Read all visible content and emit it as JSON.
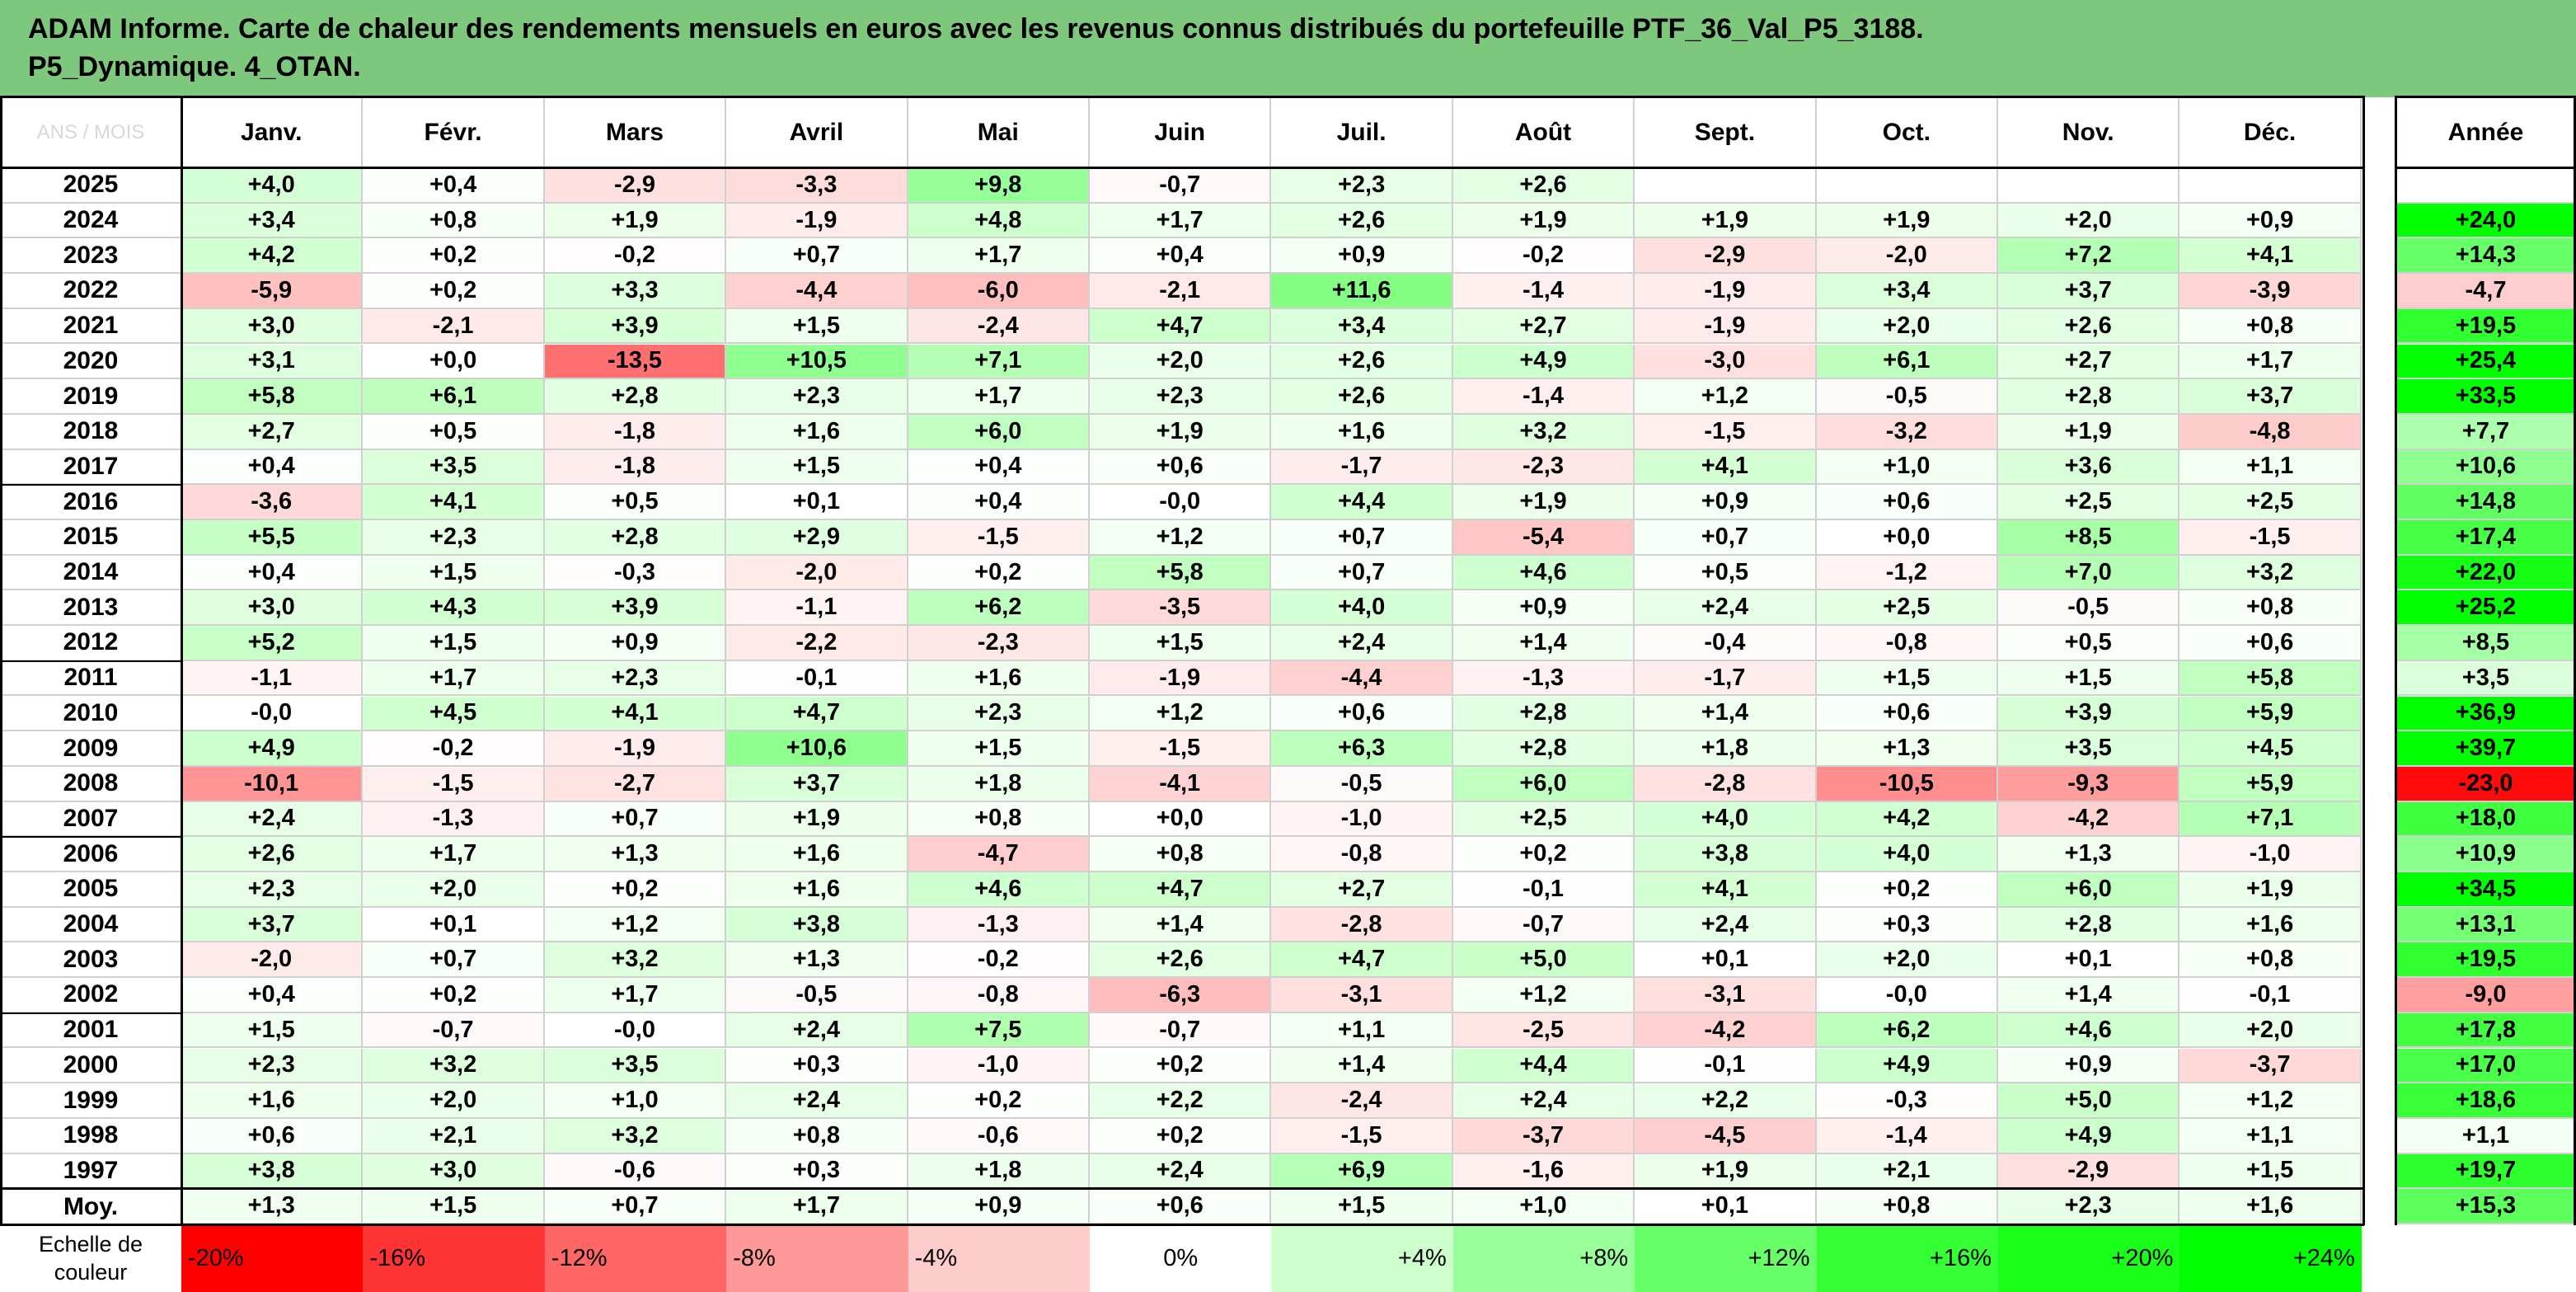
{
  "title": "ADAM Informe. Carte de chaleur des rendements mensuels en euros avec les revenus connus distribués du portefeuille PTF_36_Val_P5_3188.\nP5_Dynamique. 4_OTAN.",
  "corner_label": "ANS / MOIS",
  "months": [
    "Janv.",
    "Févr.",
    "Mars",
    "Avril",
    "Mai",
    "Juin",
    "Juil.",
    "Août",
    "Sept.",
    "Oct.",
    "Nov.",
    "Déc."
  ],
  "year_header": "Année",
  "rows": [
    {
      "year": "2025",
      "m": [
        "+4,0",
        "+0,4",
        "-2,9",
        "-3,3",
        "+9,8",
        "-0,7",
        "+2,3",
        "+2,6",
        "",
        "",
        "",
        ""
      ],
      "annual": ""
    },
    {
      "year": "2024",
      "m": [
        "+3,4",
        "+0,8",
        "+1,9",
        "-1,9",
        "+4,8",
        "+1,7",
        "+2,6",
        "+1,9",
        "+1,9",
        "+1,9",
        "+2,0",
        "+0,9"
      ],
      "annual": "+24,0"
    },
    {
      "year": "2023",
      "m": [
        "+4,2",
        "+0,2",
        "-0,2",
        "+0,7",
        "+1,7",
        "+0,4",
        "+0,9",
        "-0,2",
        "-2,9",
        "-2,0",
        "+7,2",
        "+4,1"
      ],
      "annual": "+14,3"
    },
    {
      "year": "2022",
      "m": [
        "-5,9",
        "+0,2",
        "+3,3",
        "-4,4",
        "-6,0",
        "-2,1",
        "+11,6",
        "-1,4",
        "-1,9",
        "+3,4",
        "+3,7",
        "-3,9"
      ],
      "annual": "-4,7"
    },
    {
      "year": "2021",
      "m": [
        "+3,0",
        "-2,1",
        "+3,9",
        "+1,5",
        "-2,4",
        "+4,7",
        "+3,4",
        "+2,7",
        "-1,9",
        "+2,0",
        "+2,6",
        "+0,8"
      ],
      "annual": "+19,5"
    },
    {
      "year": "2020",
      "m": [
        "+3,1",
        "+0,0",
        "-13,5",
        "+10,5",
        "+7,1",
        "+2,0",
        "+2,6",
        "+4,9",
        "-3,0",
        "+6,1",
        "+2,7",
        "+1,7"
      ],
      "annual": "+25,4"
    },
    {
      "year": "2019",
      "m": [
        "+5,8",
        "+6,1",
        "+2,8",
        "+2,3",
        "+1,7",
        "+2,3",
        "+2,6",
        "-1,4",
        "+1,2",
        "-0,5",
        "+2,8",
        "+3,7"
      ],
      "annual": "+33,5"
    },
    {
      "year": "2018",
      "m": [
        "+2,7",
        "+0,5",
        "-1,8",
        "+1,6",
        "+6,0",
        "+1,9",
        "+1,6",
        "+3,2",
        "-1,5",
        "-3,2",
        "+1,9",
        "-4,8"
      ],
      "annual": "+7,7"
    },
    {
      "year": "2017",
      "m": [
        "+0,4",
        "+3,5",
        "-1,8",
        "+1,5",
        "+0,4",
        "+0,6",
        "-1,7",
        "-2,3",
        "+4,1",
        "+1,0",
        "+3,6",
        "+1,1"
      ],
      "annual": "+10,6"
    },
    {
      "year": "2016",
      "m": [
        "-3,6",
        "+4,1",
        "+0,5",
        "+0,1",
        "+0,4",
        "-0,0",
        "+4,4",
        "+1,9",
        "+0,9",
        "+0,6",
        "+2,5",
        "+2,5"
      ],
      "annual": "+14,8"
    },
    {
      "year": "2015",
      "m": [
        "+5,5",
        "+2,3",
        "+2,8",
        "+2,9",
        "-1,5",
        "+1,2",
        "+0,7",
        "-5,4",
        "+0,7",
        "+0,0",
        "+8,5",
        "-1,5"
      ],
      "annual": "+17,4"
    },
    {
      "year": "2014",
      "m": [
        "+0,4",
        "+1,5",
        "-0,3",
        "-2,0",
        "+0,2",
        "+5,8",
        "+0,7",
        "+4,6",
        "+0,5",
        "-1,2",
        "+7,0",
        "+3,2"
      ],
      "annual": "+22,0"
    },
    {
      "year": "2013",
      "m": [
        "+3,0",
        "+4,3",
        "+3,9",
        "-1,1",
        "+6,2",
        "-3,5",
        "+4,0",
        "+0,9",
        "+2,4",
        "+2,5",
        "-0,5",
        "+0,8"
      ],
      "annual": "+25,2"
    },
    {
      "year": "2012",
      "m": [
        "+5,2",
        "+1,5",
        "+0,9",
        "-2,2",
        "-2,3",
        "+1,5",
        "+2,4",
        "+1,4",
        "-0,4",
        "-0,8",
        "+0,5",
        "+0,6"
      ],
      "annual": "+8,5"
    },
    {
      "year": "2011",
      "m": [
        "-1,1",
        "+1,7",
        "+2,3",
        "-0,1",
        "+1,6",
        "-1,9",
        "-4,4",
        "-1,3",
        "-1,7",
        "+1,5",
        "+1,5",
        "+5,8"
      ],
      "annual": "+3,5"
    },
    {
      "year": "2010",
      "m": [
        "-0,0",
        "+4,5",
        "+4,1",
        "+4,7",
        "+2,3",
        "+1,2",
        "+0,6",
        "+2,8",
        "+1,4",
        "+0,6",
        "+3,9",
        "+5,9"
      ],
      "annual": "+36,9"
    },
    {
      "year": "2009",
      "m": [
        "+4,9",
        "-0,2",
        "-1,9",
        "+10,6",
        "+1,5",
        "-1,5",
        "+6,3",
        "+2,8",
        "+1,8",
        "+1,3",
        "+3,5",
        "+4,5"
      ],
      "annual": "+39,7"
    },
    {
      "year": "2008",
      "m": [
        "-10,1",
        "-1,5",
        "-2,7",
        "+3,7",
        "+1,8",
        "-4,1",
        "-0,5",
        "+6,0",
        "-2,8",
        "-10,5",
        "-9,3",
        "+5,9"
      ],
      "annual": "-23,0"
    },
    {
      "year": "2007",
      "m": [
        "+2,4",
        "-1,3",
        "+0,7",
        "+1,9",
        "+0,8",
        "+0,0",
        "-1,0",
        "+2,5",
        "+4,0",
        "+4,2",
        "-4,2",
        "+7,1"
      ],
      "annual": "+18,0"
    },
    {
      "year": "2006",
      "m": [
        "+2,6",
        "+1,7",
        "+1,3",
        "+1,6",
        "-4,7",
        "+0,8",
        "-0,8",
        "+0,2",
        "+3,8",
        "+4,0",
        "+1,3",
        "-1,0"
      ],
      "annual": "+10,9"
    },
    {
      "year": "2005",
      "m": [
        "+2,3",
        "+2,0",
        "+0,2",
        "+1,6",
        "+4,6",
        "+4,7",
        "+2,7",
        "-0,1",
        "+4,1",
        "+0,2",
        "+6,0",
        "+1,9"
      ],
      "annual": "+34,5"
    },
    {
      "year": "2004",
      "m": [
        "+3,7",
        "+0,1",
        "+1,2",
        "+3,8",
        "-1,3",
        "+1,4",
        "-2,8",
        "-0,7",
        "+2,4",
        "+0,3",
        "+2,8",
        "+1,6"
      ],
      "annual": "+13,1"
    },
    {
      "year": "2003",
      "m": [
        "-2,0",
        "+0,7",
        "+3,2",
        "+1,3",
        "-0,2",
        "+2,6",
        "+4,7",
        "+5,0",
        "+0,1",
        "+2,0",
        "+0,1",
        "+0,8"
      ],
      "annual": "+19,5"
    },
    {
      "year": "2002",
      "m": [
        "+0,4",
        "+0,2",
        "+1,7",
        "-0,5",
        "-0,8",
        "-6,3",
        "-3,1",
        "+1,2",
        "-3,1",
        "-0,0",
        "+1,4",
        "-0,1"
      ],
      "annual": "-9,0"
    },
    {
      "year": "2001",
      "m": [
        "+1,5",
        "-0,7",
        "-0,0",
        "+2,4",
        "+7,5",
        "-0,7",
        "+1,1",
        "-2,5",
        "-4,2",
        "+6,2",
        "+4,6",
        "+2,0"
      ],
      "annual": "+17,8"
    },
    {
      "year": "2000",
      "m": [
        "+2,3",
        "+3,2",
        "+3,5",
        "+0,3",
        "-1,0",
        "+0,2",
        "+1,4",
        "+4,4",
        "-0,1",
        "+4,9",
        "+0,9",
        "-3,7"
      ],
      "annual": "+17,0"
    },
    {
      "year": "1999",
      "m": [
        "+1,6",
        "+2,0",
        "+1,0",
        "+2,4",
        "+0,2",
        "+2,2",
        "-2,4",
        "+2,4",
        "+2,2",
        "-0,3",
        "+5,0",
        "+1,2"
      ],
      "annual": "+18,6"
    },
    {
      "year": "1998",
      "m": [
        "+0,6",
        "+2,1",
        "+3,2",
        "+0,8",
        "-0,6",
        "+0,2",
        "-1,5",
        "-3,7",
        "-4,5",
        "-1,4",
        "+4,9",
        "+1,1"
      ],
      "annual": "+1,1"
    },
    {
      "year": "1997",
      "m": [
        "+3,8",
        "+3,0",
        "-0,6",
        "+0,3",
        "+1,8",
        "+2,4",
        "+6,9",
        "-1,6",
        "+1,9",
        "+2,1",
        "-2,9",
        "+1,5"
      ],
      "annual": "+19,7"
    }
  ],
  "avg_row": {
    "label": "Moy.",
    "m": [
      "+1,3",
      "+1,5",
      "+0,7",
      "+1,7",
      "+0,9",
      "+0,6",
      "+1,5",
      "+1,0",
      "+0,1",
      "+0,8",
      "+2,3",
      "+1,6"
    ],
    "annual": "+15,3"
  },
  "scale": {
    "label": "Echelle de\ncouleur",
    "steps": [
      {
        "label": "-20%",
        "color": "#ff0000",
        "align": "left"
      },
      {
        "label": "-16%",
        "color": "#ff3333",
        "align": "left"
      },
      {
        "label": "-12%",
        "color": "#ff6666",
        "align": "left"
      },
      {
        "label": "-8%",
        "color": "#ff9999",
        "align": "left"
      },
      {
        "label": "-4%",
        "color": "#ffcccc",
        "align": "left"
      },
      {
        "label": "0%",
        "color": "#ffffff",
        "align": "center"
      },
      {
        "label": "+4%",
        "color": "#ccffcc",
        "align": "right"
      },
      {
        "label": "+8%",
        "color": "#99ff99",
        "align": "right"
      },
      {
        "label": "+12%",
        "color": "#66ff66",
        "align": "right"
      },
      {
        "label": "+16%",
        "color": "#33ff33",
        "align": "right"
      },
      {
        "label": "+20%",
        "color": "#1aff1a",
        "align": "right"
      },
      {
        "label": "+24%",
        "color": "#00ff00",
        "align": "right"
      }
    ]
  },
  "chart_data": {
    "type": "heatmap",
    "title": "ADAM Informe. Carte de chaleur des rendements mensuels en euros avec les revenus connus distribués du portefeuille PTF_36_Val_P5_3188. P5_Dynamique. 4_OTAN.",
    "x": [
      "Janv.",
      "Févr.",
      "Mars",
      "Avril",
      "Mai",
      "Juin",
      "Juil.",
      "Août",
      "Sept.",
      "Oct.",
      "Nov.",
      "Déc.",
      "Année"
    ],
    "y": [
      "2025",
      "2024",
      "2023",
      "2022",
      "2021",
      "2020",
      "2019",
      "2018",
      "2017",
      "2016",
      "2015",
      "2014",
      "2013",
      "2012",
      "2011",
      "2010",
      "2009",
      "2008",
      "2007",
      "2006",
      "2005",
      "2004",
      "2003",
      "2002",
      "2001",
      "2000",
      "1999",
      "1998",
      "1997",
      "Moy."
    ],
    "value_source": "rows",
    "color_scale": {
      "min": -24,
      "max": 24,
      "neg_color": "#ff0000",
      "zero_color": "#ffffff",
      "pos_color": "#00ff00"
    }
  }
}
